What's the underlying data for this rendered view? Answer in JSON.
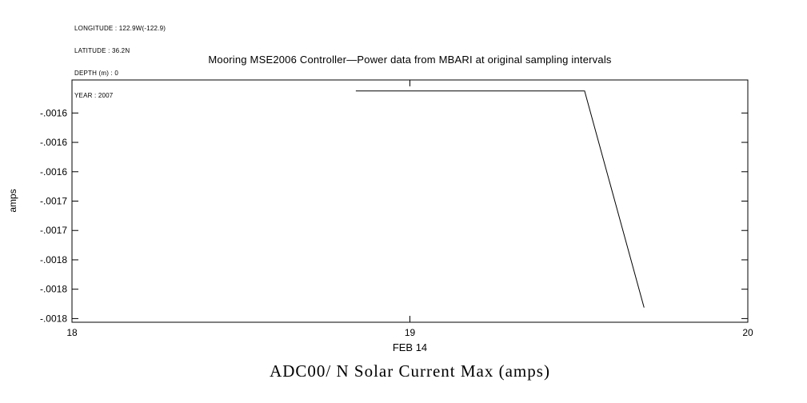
{
  "station_info": {
    "longitude": "LONGITUDE : 122.9W(-122.9)",
    "latitude": "LATITUDE : 36.2N",
    "depth": "DEPTH (m) : 0",
    "year": "YEAR : 2007"
  },
  "chart_data": {
    "type": "line",
    "title": "Mooring MSE2006 Controller—Power data from MBARI at original sampling intervals",
    "bottom_title": "ADC00/ N Solar Current Max (amps)",
    "ylabel": "amps",
    "xlabel": "FEB 14",
    "background": "#ffffff",
    "line_color": "#000000",
    "frame_color": "#000000",
    "grid": false,
    "legend": "none",
    "x_range": [
      18,
      20
    ],
    "y_range": [
      -0.001515,
      -0.001845
    ],
    "x_ticks": [
      {
        "value": 18,
        "label": "18"
      },
      {
        "value": 19,
        "label": "19"
      },
      {
        "value": 20,
        "label": "20"
      }
    ],
    "y_ticks": [
      {
        "value": -0.00156,
        "label": "-.0016"
      },
      {
        "value": -0.0016,
        "label": "-.0016"
      },
      {
        "value": -0.00164,
        "label": "-.0016"
      },
      {
        "value": -0.00168,
        "label": "-.0017"
      },
      {
        "value": -0.00172,
        "label": "-.0017"
      },
      {
        "value": -0.00176,
        "label": "-.0018"
      },
      {
        "value": -0.0018,
        "label": "-.0018"
      },
      {
        "value": -0.00184,
        "label": "-.0018"
      }
    ],
    "series": [
      {
        "name": "solar-current-max",
        "points": [
          [
            18.84,
            -0.00153
          ],
          [
            19.517,
            -0.00153
          ],
          [
            19.693,
            -0.001825
          ]
        ]
      }
    ]
  }
}
